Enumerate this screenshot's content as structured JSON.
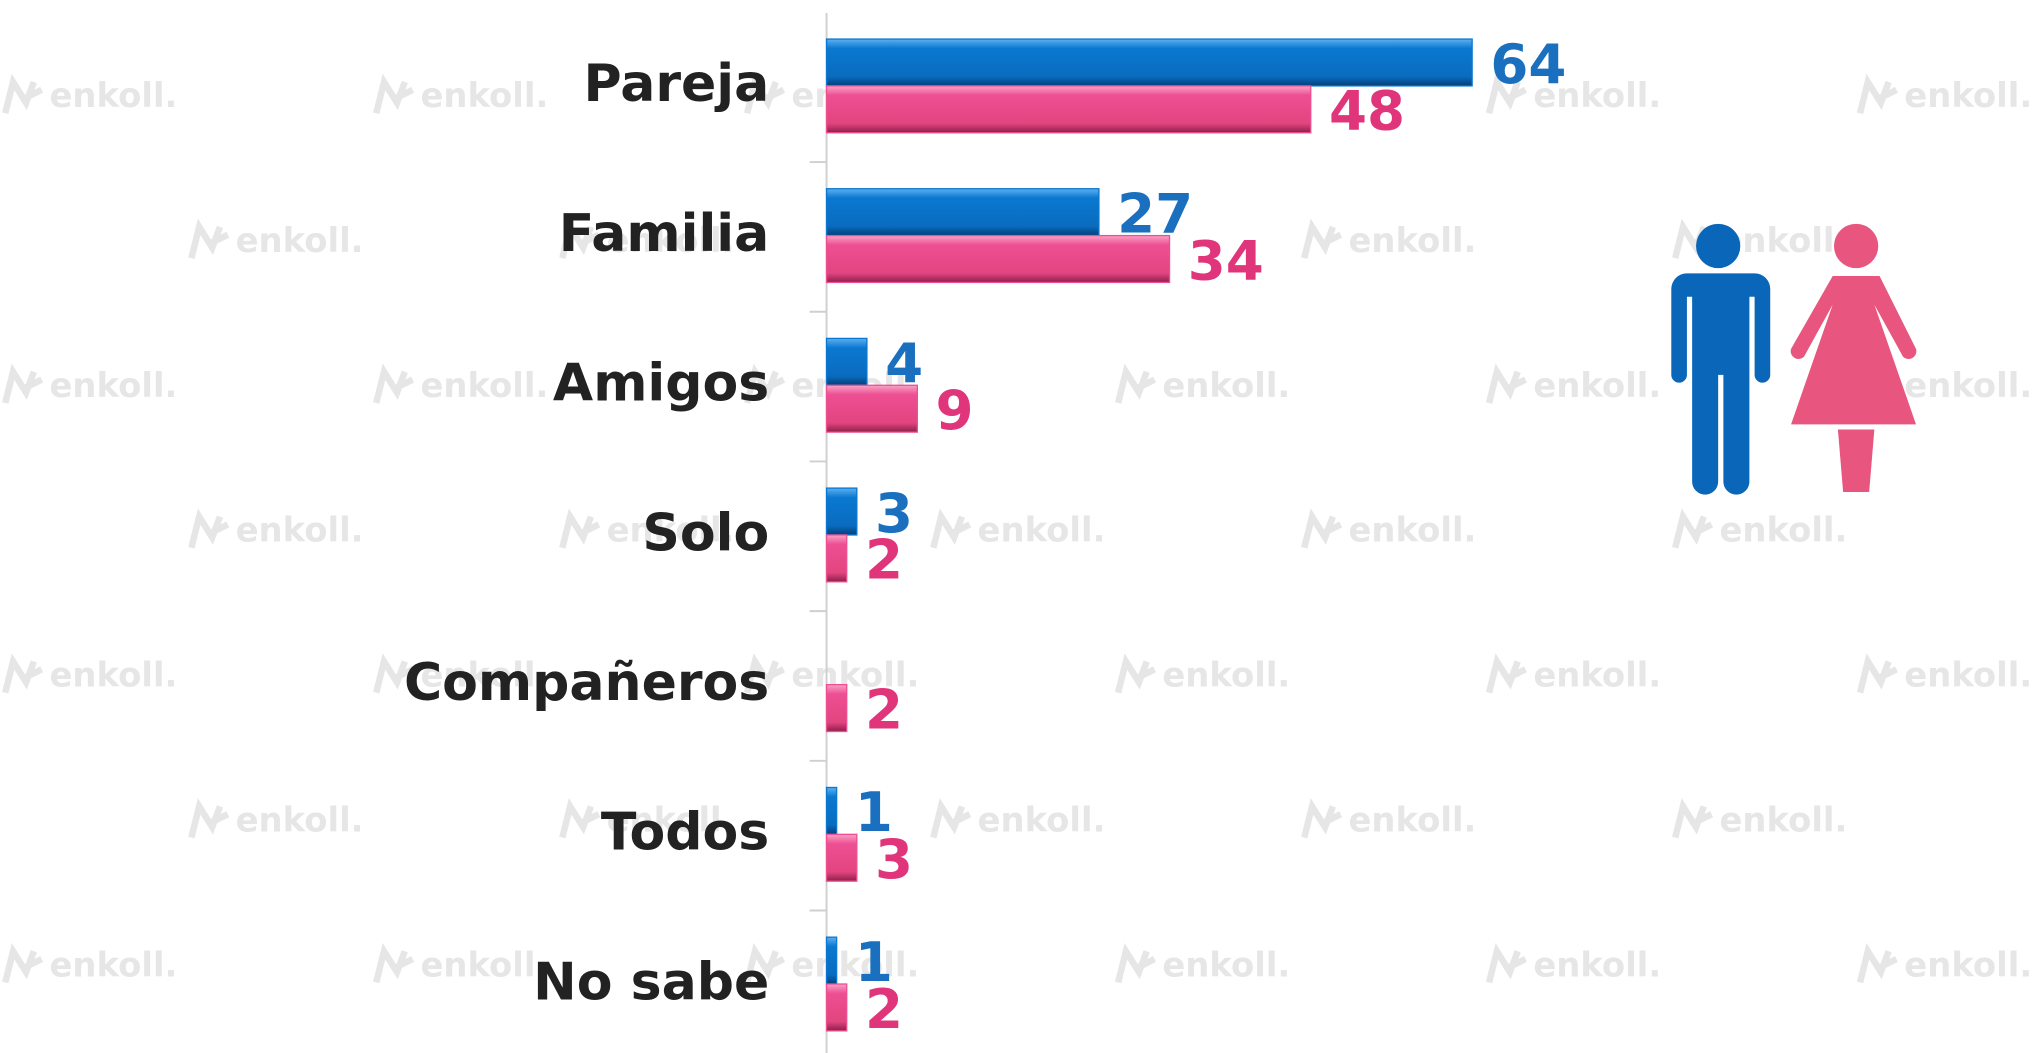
{
  "watermark": "enkoll.",
  "chart_data": {
    "type": "bar",
    "orientation": "horizontal",
    "categories": [
      "Pareja",
      "Familia",
      "Amigos",
      "Solo",
      "Compañeros",
      "Todos",
      "No sabe"
    ],
    "series": [
      {
        "color": "#0a78d0",
        "values": [
          64,
          27,
          4,
          3,
          null,
          1,
          1
        ]
      },
      {
        "color": "#ee4f93",
        "values": [
          48,
          34,
          9,
          2,
          2,
          3,
          2
        ]
      }
    ],
    "xlim": [
      0,
      120
    ]
  }
}
